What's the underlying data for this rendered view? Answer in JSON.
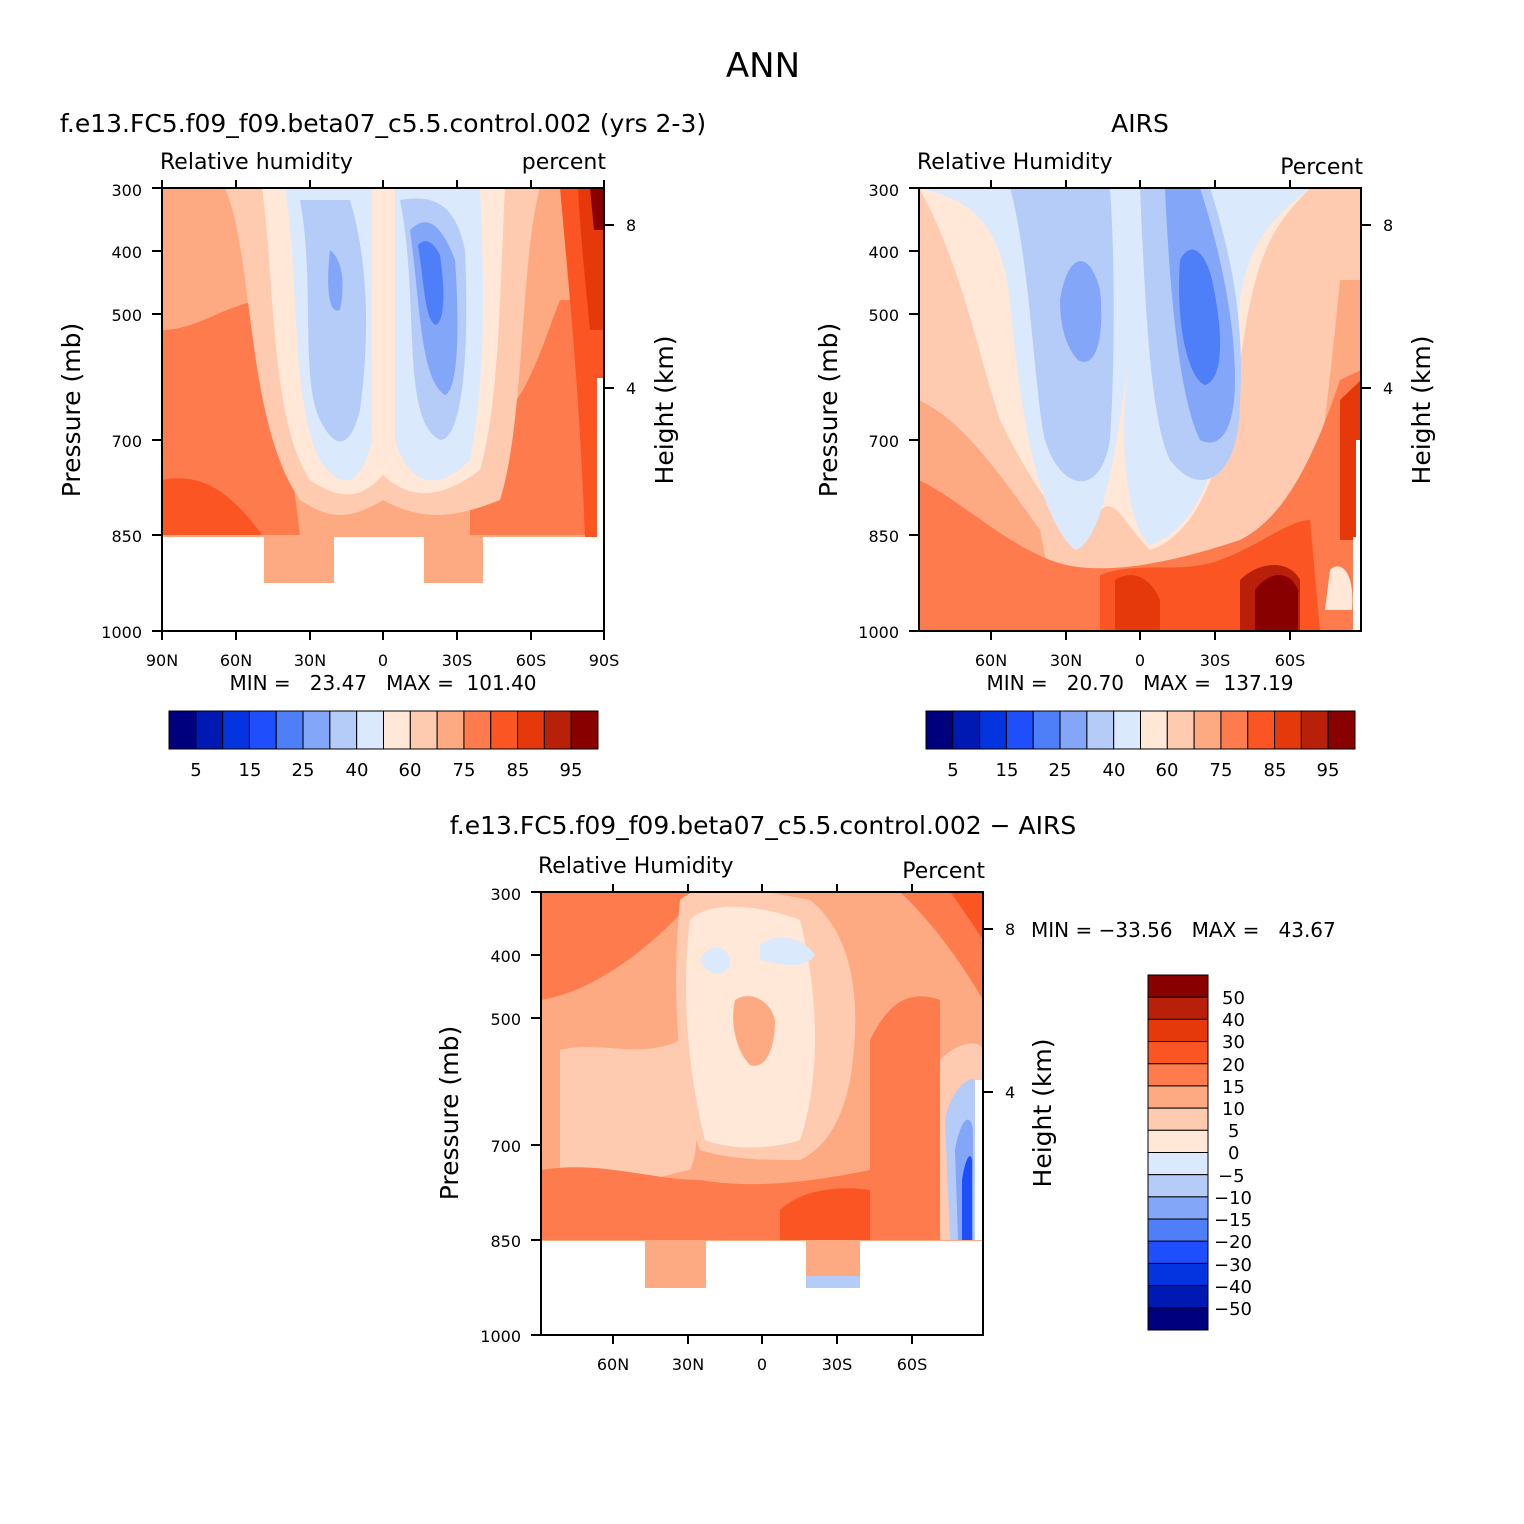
{
  "page_title": "ANN",
  "palettes": {
    "abs": [
      "#00007f",
      "#0019b2",
      "#0433e0",
      "#1f4ffc",
      "#4f7ef9",
      "#83a6f8",
      "#b5ccf8",
      "#dbe9fc",
      "#ffe8d8",
      "#ffcbb0",
      "#fdaa83",
      "#fd7b4c",
      "#fc5524",
      "#e5390c",
      "#b8200a",
      "#890000"
    ],
    "diff": [
      "#00007f",
      "#0019b2",
      "#0433e0",
      "#1f4ffc",
      "#4f7ef9",
      "#83a6f8",
      "#b5ccf8",
      "#dbe9fc",
      "#ffe8d8",
      "#ffcbb0",
      "#fdaa83",
      "#fd7b4c",
      "#fc5524",
      "#e5390c",
      "#b8200a",
      "#890000"
    ]
  },
  "chart_data": [
    {
      "type": "contour",
      "title": "f.e13.FC5.f09_f09.beta07_c5.5.control.002 (yrs 2-3)",
      "left_label": "Relative humidity",
      "right_label": "percent",
      "ylabel": "Pressure (mb)",
      "ylabel2": "Height (km)",
      "yticks": [
        "300",
        "400",
        "500",
        "700",
        "850",
        "1000"
      ],
      "yticks2": [
        "8",
        "4"
      ],
      "xticks": [
        "90N",
        "60N",
        "30N",
        "0",
        "30S",
        "60S",
        "90S"
      ],
      "stats_text": "MIN =   23.47   MAX =  101.40",
      "min": 23.47,
      "max": 101.4,
      "colorbar_labels": [
        "5",
        "15",
        "25",
        "40",
        "60",
        "75",
        "85",
        "95"
      ]
    },
    {
      "type": "contour",
      "title": "AIRS",
      "left_label": "Relative Humidity",
      "right_label": "Percent",
      "ylabel": "Pressure (mb)",
      "ylabel2": "Height (km)",
      "yticks": [
        "300",
        "400",
        "500",
        "700",
        "850",
        "1000"
      ],
      "yticks2": [
        "8",
        "4"
      ],
      "xticks": [
        "60N",
        "30N",
        "0",
        "30S",
        "60S"
      ],
      "stats_text": "MIN =   20.70   MAX =  137.19",
      "min": 20.7,
      "max": 137.19,
      "colorbar_labels": [
        "5",
        "15",
        "25",
        "40",
        "60",
        "75",
        "85",
        "95"
      ]
    },
    {
      "type": "contour",
      "title": "f.e13.FC5.f09_f09.beta07_c5.5.control.002 − AIRS",
      "left_label": "Relative Humidity",
      "right_label": "Percent",
      "ylabel": "Pressure (mb)",
      "ylabel2": "Height (km)",
      "yticks": [
        "300",
        "400",
        "500",
        "700",
        "850",
        "1000"
      ],
      "yticks2": [
        "8",
        "4"
      ],
      "xticks": [
        "60N",
        "30N",
        "0",
        "30S",
        "60S"
      ],
      "stats_text": "MIN = −33.56   MAX =   43.67",
      "min": -33.56,
      "max": 43.67,
      "colorbar_labels": [
        "50",
        "40",
        "30",
        "20",
        "15",
        "10",
        "5",
        "0",
        "−5",
        "−10",
        "−15",
        "−20",
        "−30",
        "−40",
        "−50"
      ]
    }
  ]
}
